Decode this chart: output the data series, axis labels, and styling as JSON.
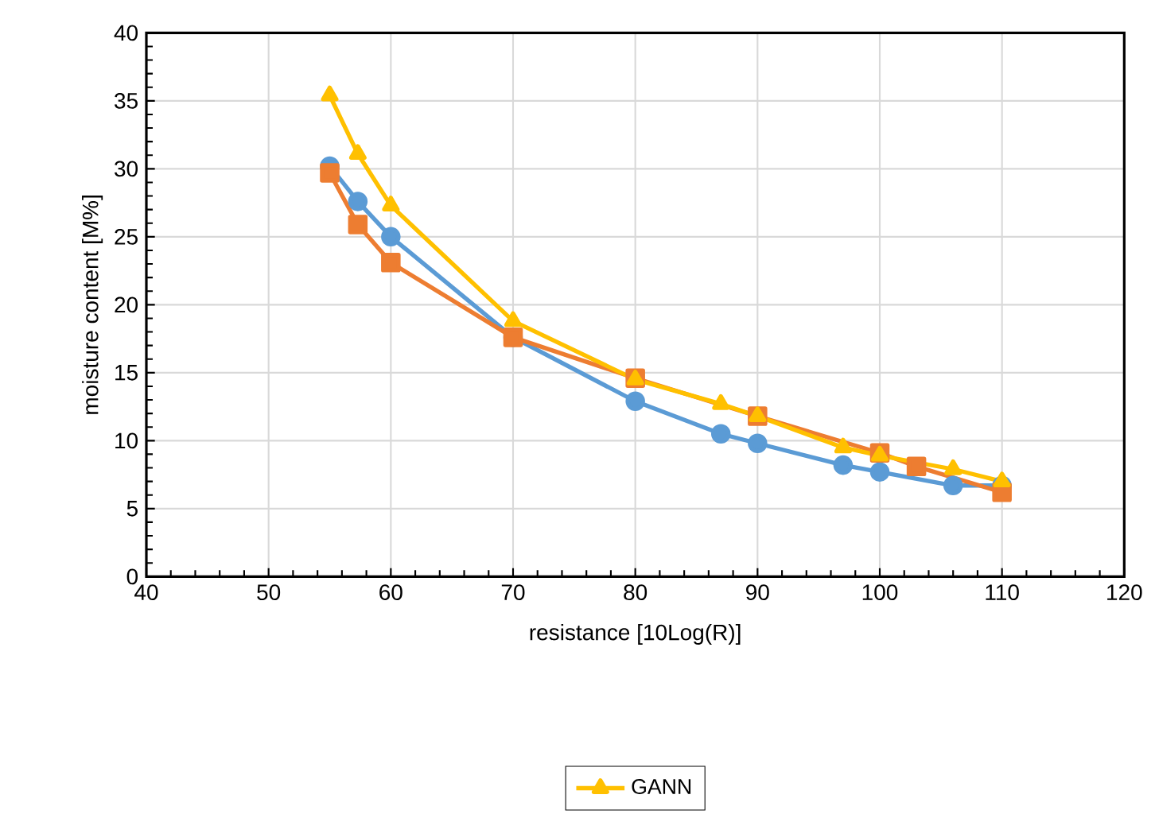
{
  "chart_data": {
    "type": "line",
    "xlabel": "resistance [10Log(R)]",
    "ylabel": "moisture content [M%]",
    "xlim": [
      40,
      120
    ],
    "ylim": [
      0,
      40
    ],
    "xticks": [
      40,
      50,
      60,
      70,
      80,
      90,
      100,
      110,
      120
    ],
    "yticks": [
      0,
      5,
      10,
      15,
      20,
      25,
      30,
      35,
      40
    ],
    "grid": true,
    "legend": "bottom",
    "line_style": "solid",
    "series": [
      {
        "color": "#5b9bd5",
        "marker": "circle",
        "x": [
          55,
          57.3,
          60,
          70,
          80,
          87,
          90,
          97,
          100,
          106,
          110
        ],
        "values": [
          30.2,
          27.6,
          25.0,
          17.6,
          12.9,
          10.5,
          9.8,
          8.2,
          7.7,
          6.7,
          6.7
        ]
      },
      {
        "color": "#ed7d31",
        "marker": "square",
        "x": [
          55,
          57.3,
          60,
          70,
          80,
          90,
          100,
          103,
          110
        ],
        "values": [
          29.7,
          25.9,
          23.1,
          17.6,
          14.6,
          11.8,
          9.1,
          8.1,
          6.2
        ]
      },
      {
        "name": "GANN",
        "color": "#ffc000",
        "marker": "triangle",
        "x": [
          55,
          57.3,
          60,
          70,
          80,
          87,
          90,
          97,
          100,
          106,
          110
        ],
        "values": [
          35.4,
          31.1,
          27.3,
          18.8,
          14.5,
          12.7,
          11.8,
          9.5,
          8.9,
          7.9,
          7.0
        ]
      }
    ]
  }
}
